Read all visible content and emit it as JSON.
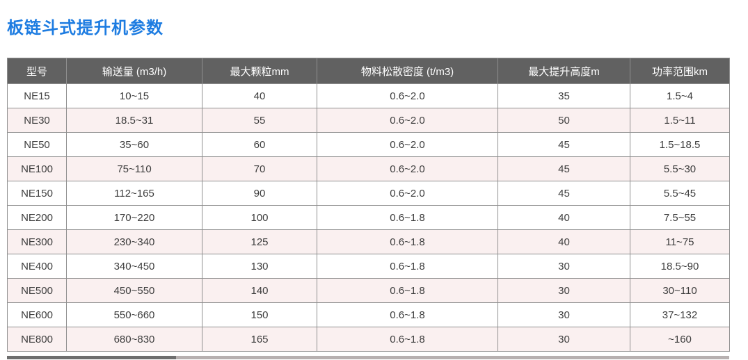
{
  "page": {
    "title": "板链斗式提升机参数"
  },
  "table": {
    "columns": [
      {
        "key": "model",
        "label": "型号"
      },
      {
        "key": "capacity",
        "label": "输送量 (m3/h)"
      },
      {
        "key": "max_particle",
        "label": "最大颗粒mm"
      },
      {
        "key": "density",
        "label": "物料松散密度 (t/m3)"
      },
      {
        "key": "max_height",
        "label": "最大提升高度m"
      },
      {
        "key": "power_range",
        "label": "功率范围km"
      }
    ],
    "rows": [
      {
        "shaded": false,
        "cells": [
          "NE15",
          "10~15",
          "40",
          "0.6~2.0",
          "35",
          "1.5~4"
        ]
      },
      {
        "shaded": true,
        "cells": [
          "NE30",
          "18.5~31",
          "55",
          "0.6~2.0",
          "50",
          "1.5~11"
        ]
      },
      {
        "shaded": false,
        "cells": [
          "NE50",
          "35~60",
          "60",
          "0.6~2.0",
          "45",
          "1.5~18.5"
        ]
      },
      {
        "shaded": true,
        "cells": [
          "NE100",
          "75~110",
          "70",
          "0.6~2.0",
          "45",
          "5.5~30"
        ]
      },
      {
        "shaded": false,
        "cells": [
          "NE150",
          "112~165",
          "90",
          "0.6~2.0",
          "45",
          "5.5~45"
        ]
      },
      {
        "shaded": false,
        "cells": [
          "NE200",
          "170~220",
          "100",
          "0.6~1.8",
          "40",
          "7.5~55"
        ]
      },
      {
        "shaded": true,
        "cells": [
          "NE300",
          "230~340",
          "125",
          "0.6~1.8",
          "40",
          "11~75"
        ]
      },
      {
        "shaded": false,
        "cells": [
          "NE400",
          "340~450",
          "130",
          "0.6~1.8",
          "30",
          "18.5~90"
        ]
      },
      {
        "shaded": true,
        "cells": [
          "NE500",
          "450~550",
          "140",
          "0.6~1.8",
          "30",
          "30~110"
        ]
      },
      {
        "shaded": false,
        "cells": [
          "NE600",
          "550~660",
          "150",
          "0.6~1.8",
          "30",
          "37~132"
        ]
      },
      {
        "shaded": true,
        "cells": [
          "NE800",
          "680~830",
          "165",
          "0.6~1.8",
          "30",
          "~160"
        ]
      }
    ]
  },
  "colors": {
    "title_accent": "#1d7ce1",
    "header_background": "#616161",
    "header_text": "#ffffff",
    "stripe_background": "#faf0f0",
    "border": "#8f8f8f",
    "scrollbar_track": "#b7b0b0",
    "scrollbar_thumb": "#6e6e6e"
  }
}
